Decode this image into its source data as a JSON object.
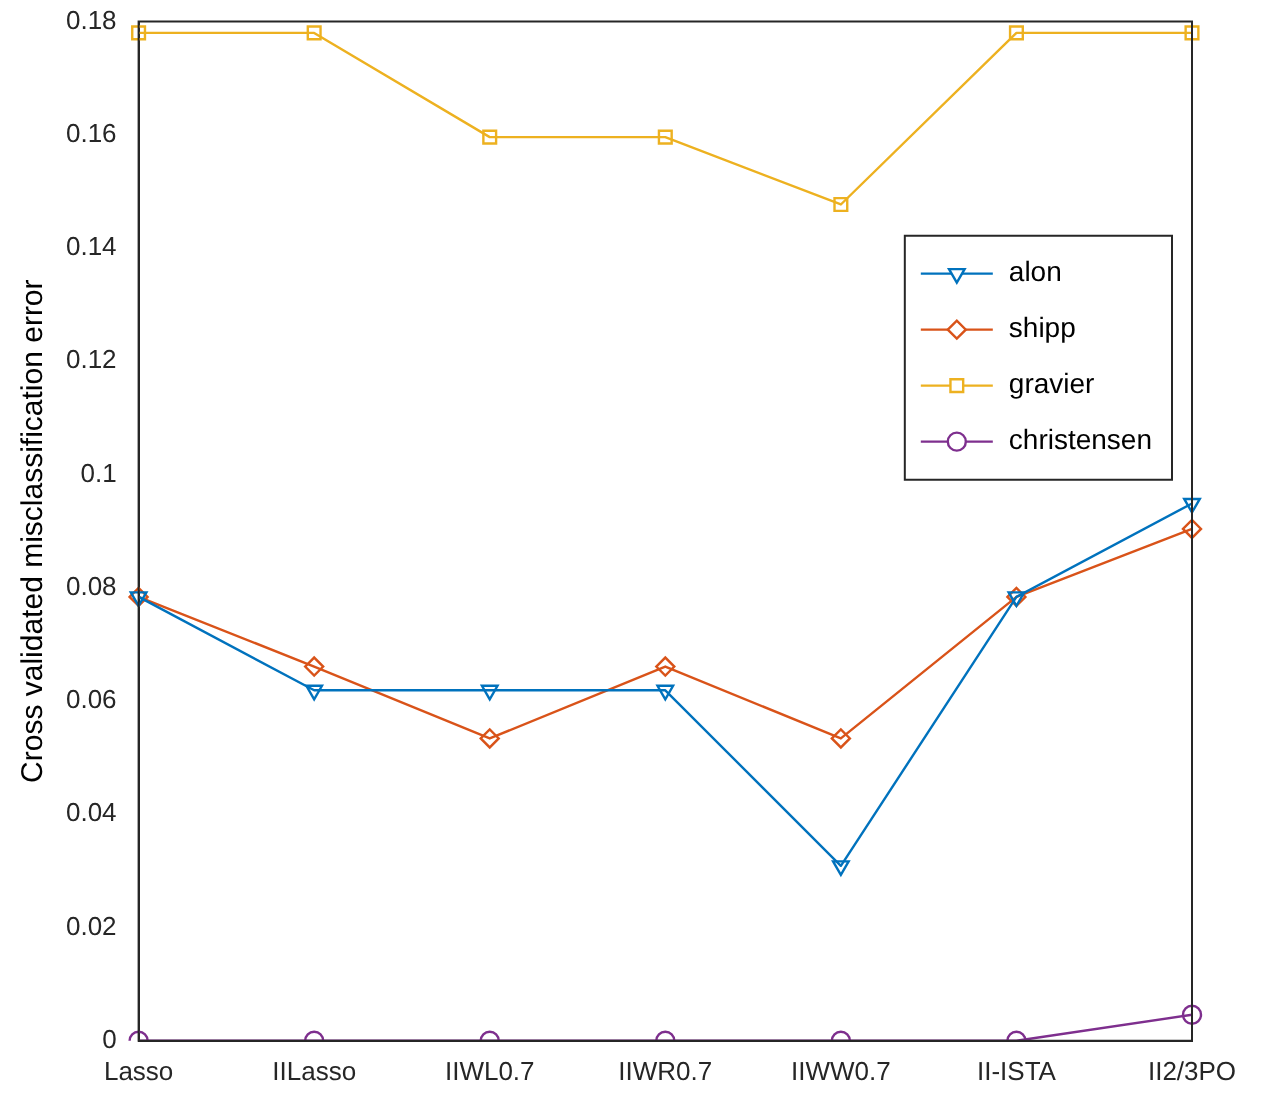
{
  "chart_data": {
    "type": "line",
    "ylabel": "Cross validated misclassification error",
    "categories": [
      "Lasso",
      "IILasso",
      "IIWL0.7",
      "IIWR0.7",
      "IIWW0.7",
      "II-ISTA",
      "II2/3PO"
    ],
    "ylim": [
      0,
      0.18
    ],
    "yticks": [
      0,
      0.02,
      0.04,
      0.06,
      0.08,
      0.1,
      0.12,
      0.14,
      0.16,
      0.18
    ],
    "grid": false,
    "legend": "right",
    "line_style": "solid",
    "series": [
      {
        "name": "alon",
        "color": "#0072bd",
        "marker": "triangle",
        "values": [
          0.0784,
          0.0619,
          0.0619,
          0.0619,
          0.0309,
          0.0784,
          0.0949
        ]
      },
      {
        "name": "shipp",
        "color": "#d95319",
        "marker": "diamond",
        "values": [
          0.0784,
          0.0661,
          0.0534,
          0.0661,
          0.0534,
          0.0784,
          0.0904
        ]
      },
      {
        "name": "gravier",
        "color": "#edb120",
        "marker": "square",
        "values": [
          0.178,
          0.178,
          0.1596,
          0.1596,
          0.1477,
          0.178,
          0.178
        ]
      },
      {
        "name": "christensen",
        "color": "#7e2f8e",
        "marker": "circle",
        "values": [
          0,
          0,
          0,
          0,
          0,
          0,
          0.0046
        ]
      }
    ]
  }
}
